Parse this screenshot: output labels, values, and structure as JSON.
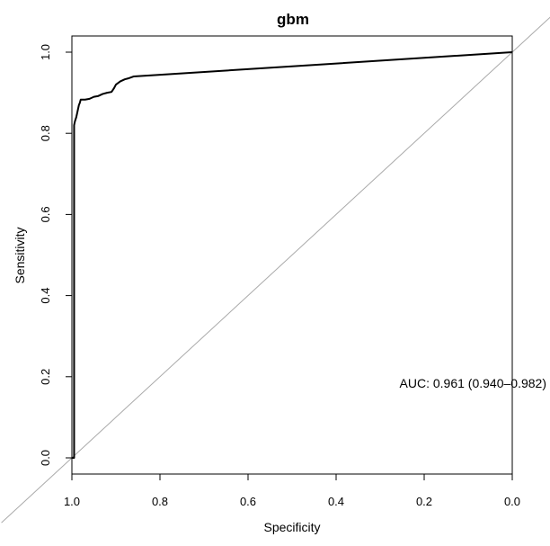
{
  "chart_data": {
    "type": "line",
    "title": "gbm",
    "xlabel": "Specificity",
    "ylabel": "Sensitivity",
    "xlim": [
      1.0,
      0.0
    ],
    "ylim": [
      0.0,
      1.0
    ],
    "x_reversed": true,
    "grid": false,
    "legend": "none",
    "x_ticks": [
      "1.0",
      "0.8",
      "0.6",
      "0.4",
      "0.2",
      "0.0"
    ],
    "y_ticks": [
      "0.0",
      "0.2",
      "0.4",
      "0.6",
      "0.8",
      "1.0"
    ],
    "series": [
      {
        "color": "#000000",
        "points": [
          [
            1.0,
            0.0
          ],
          [
            0.995,
            0.0
          ],
          [
            0.995,
            0.82
          ],
          [
            0.993,
            0.83
          ],
          [
            0.99,
            0.84
          ],
          [
            0.988,
            0.85
          ],
          [
            0.986,
            0.86
          ],
          [
            0.984,
            0.87
          ],
          [
            0.982,
            0.875
          ],
          [
            0.98,
            0.883
          ],
          [
            0.97,
            0.883
          ],
          [
            0.96,
            0.885
          ],
          [
            0.95,
            0.89
          ],
          [
            0.94,
            0.892
          ],
          [
            0.93,
            0.897
          ],
          [
            0.92,
            0.9
          ],
          [
            0.91,
            0.902
          ],
          [
            0.905,
            0.91
          ],
          [
            0.9,
            0.92
          ],
          [
            0.89,
            0.928
          ],
          [
            0.88,
            0.933
          ],
          [
            0.87,
            0.936
          ],
          [
            0.86,
            0.94
          ],
          [
            0.0,
            1.0
          ]
        ]
      }
    ],
    "reference_line": {
      "from": [
        1.0,
        0.0
      ],
      "to": [
        0.0,
        1.0
      ],
      "color": "#aaaaaa"
    },
    "annotation": "AUC: 0.961 (0.940–0.982)"
  }
}
